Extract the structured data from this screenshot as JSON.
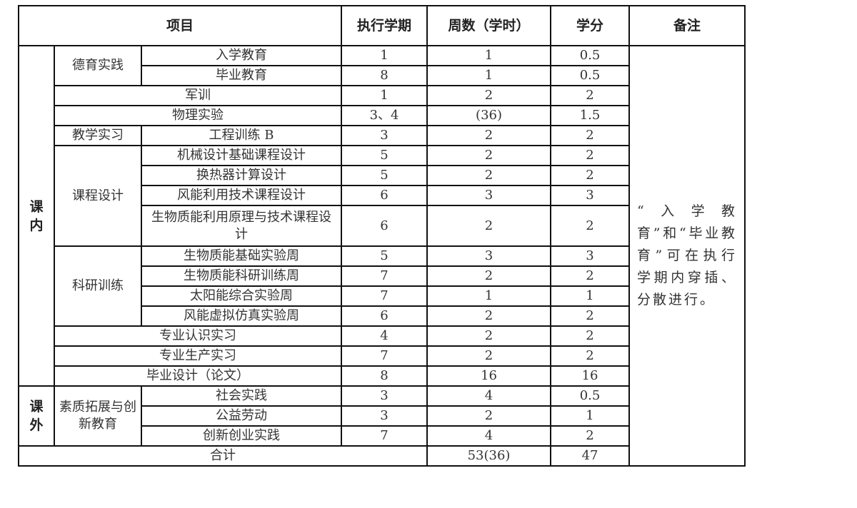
{
  "header": {
    "item": "项目",
    "semester": "执行学期",
    "weeks": "周数（学时）",
    "credits": "学分",
    "remarks": "备注"
  },
  "sections": {
    "in_class": [
      "课",
      "内"
    ],
    "out_class": [
      "课",
      "外"
    ]
  },
  "groups": {
    "moral": "德育实践",
    "teaching": "教学实习",
    "course_design": "课程设计",
    "research": "科研训练",
    "quality": "素质拓展与创新教育"
  },
  "rows": [
    {
      "item": "入学教育",
      "semester": "1",
      "weeks": "1",
      "credits": "0.5"
    },
    {
      "item": "毕业教育",
      "semester": "8",
      "weeks": "1",
      "credits": "0.5"
    },
    {
      "item": "军训",
      "semester": "1",
      "weeks": "2",
      "credits": "2"
    },
    {
      "item": "物理实验",
      "semester": "3、4",
      "weeks": "(36)",
      "credits": "1.5"
    },
    {
      "item": "工程训练 B",
      "semester": "3",
      "weeks": "2",
      "credits": "2"
    },
    {
      "item": "机械设计基础课程设计",
      "semester": "5",
      "weeks": "2",
      "credits": "2"
    },
    {
      "item": "换热器计算设计",
      "semester": "5",
      "weeks": "2",
      "credits": "2"
    },
    {
      "item": "风能利用技术课程设计",
      "semester": "6",
      "weeks": "3",
      "credits": "3"
    },
    {
      "item": "生物质能利用原理与技术课程设计",
      "semester": "6",
      "weeks": "2",
      "credits": "2"
    },
    {
      "item": "生物质能基础实验周",
      "semester": "5",
      "weeks": "3",
      "credits": "3"
    },
    {
      "item": "生物质能科研训练周",
      "semester": "7",
      "weeks": "2",
      "credits": "2"
    },
    {
      "item": "太阳能综合实验周",
      "semester": "7",
      "weeks": "1",
      "credits": "1"
    },
    {
      "item": "风能虚拟仿真实验周",
      "semester": "6",
      "weeks": "2",
      "credits": "2"
    },
    {
      "item": "专业认识实习",
      "semester": "4",
      "weeks": "2",
      "credits": "2"
    },
    {
      "item": "专业生产实习",
      "semester": "7",
      "weeks": "2",
      "credits": "2"
    },
    {
      "item": "毕业设计（论文）",
      "semester": "8",
      "weeks": "16",
      "credits": "16"
    },
    {
      "item": "社会实践",
      "semester": "3",
      "weeks": "4",
      "credits": "0.5"
    },
    {
      "item": "公益劳动",
      "semester": "3",
      "weeks": "2",
      "credits": "1"
    },
    {
      "item": "创新创业实践",
      "semester": "7",
      "weeks": "4",
      "credits": "2"
    }
  ],
  "total": {
    "label": "合计",
    "weeks": "53(36)",
    "credits": "47"
  },
  "remark": "“入学教育”和“毕业教育”可在执行学期内穿插、分散进行。"
}
